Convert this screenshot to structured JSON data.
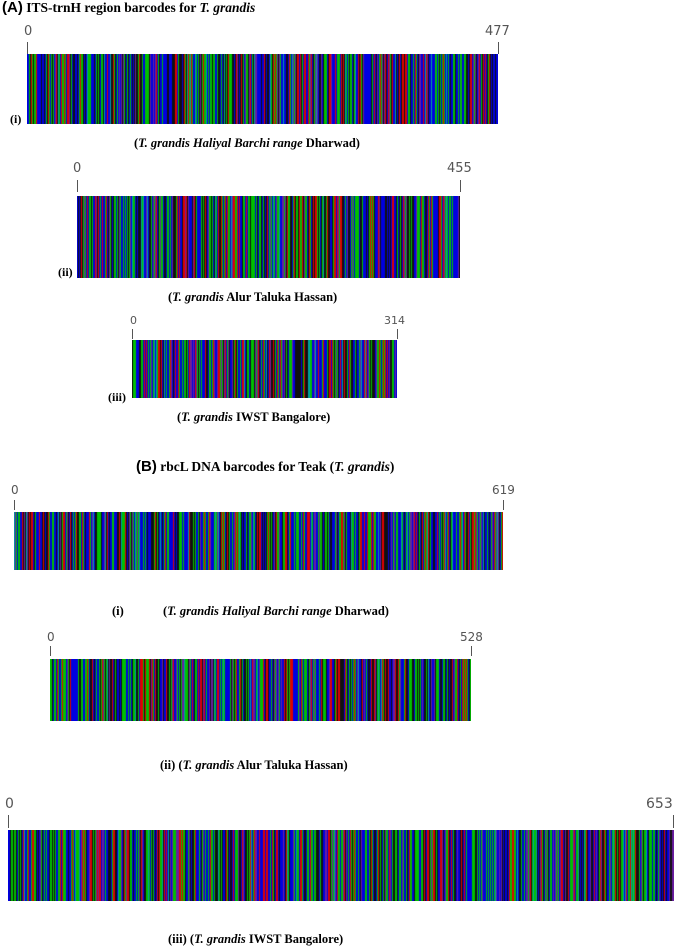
{
  "panel_a": {
    "letter": "(A)",
    "title_text": "ITS-trnH region barcodes for",
    "title_species": "T. grandis",
    "barcodes": [
      {
        "index_label": "(i)",
        "start": "0",
        "end": "477",
        "caption_open": "(",
        "caption_species": "T.  grandis Haliyal Barchi range",
        "caption_rest": " Dharwad)"
      },
      {
        "index_label": "(ii)",
        "start": "0",
        "end": "455",
        "caption_open": "(",
        "caption_species": "T. grandis",
        "caption_rest": " Alur Taluka Hassan)"
      },
      {
        "index_label": "(iii)",
        "start": "0",
        "end": "314",
        "caption_open": "(",
        "caption_species": "T. grandis",
        "caption_rest": " IWST Bangalore)"
      }
    ]
  },
  "panel_b": {
    "letter": "(B)",
    "title_text": "rbcL DNA barcodes for Teak (",
    "title_species": "T. grandis",
    "title_close": ")",
    "barcodes": [
      {
        "index_label": "(i)",
        "start": "0",
        "end": "619",
        "caption_open": "(",
        "caption_species": "T. grandis Haliyal Barchi range",
        "caption_rest": " Dharwad)"
      },
      {
        "index_label": "(ii)",
        "start": "0",
        "end": "528",
        "caption_open": "(",
        "caption_species": "T. grandis",
        "caption_rest": " Alur Taluka Hassan)"
      },
      {
        "index_label": "(iii)",
        "start": "0",
        "end": "653",
        "caption_open": "(",
        "caption_species": "T. grandis",
        "caption_rest": " IWST Bangalore)"
      }
    ]
  },
  "colors": {
    "base_a": "#00c000",
    "base_c": "#0000e0",
    "base_g": "#101010",
    "base_t": "#e00000",
    "blend_purple": "#6a1fa0",
    "blend_teal": "#00a0a0"
  }
}
